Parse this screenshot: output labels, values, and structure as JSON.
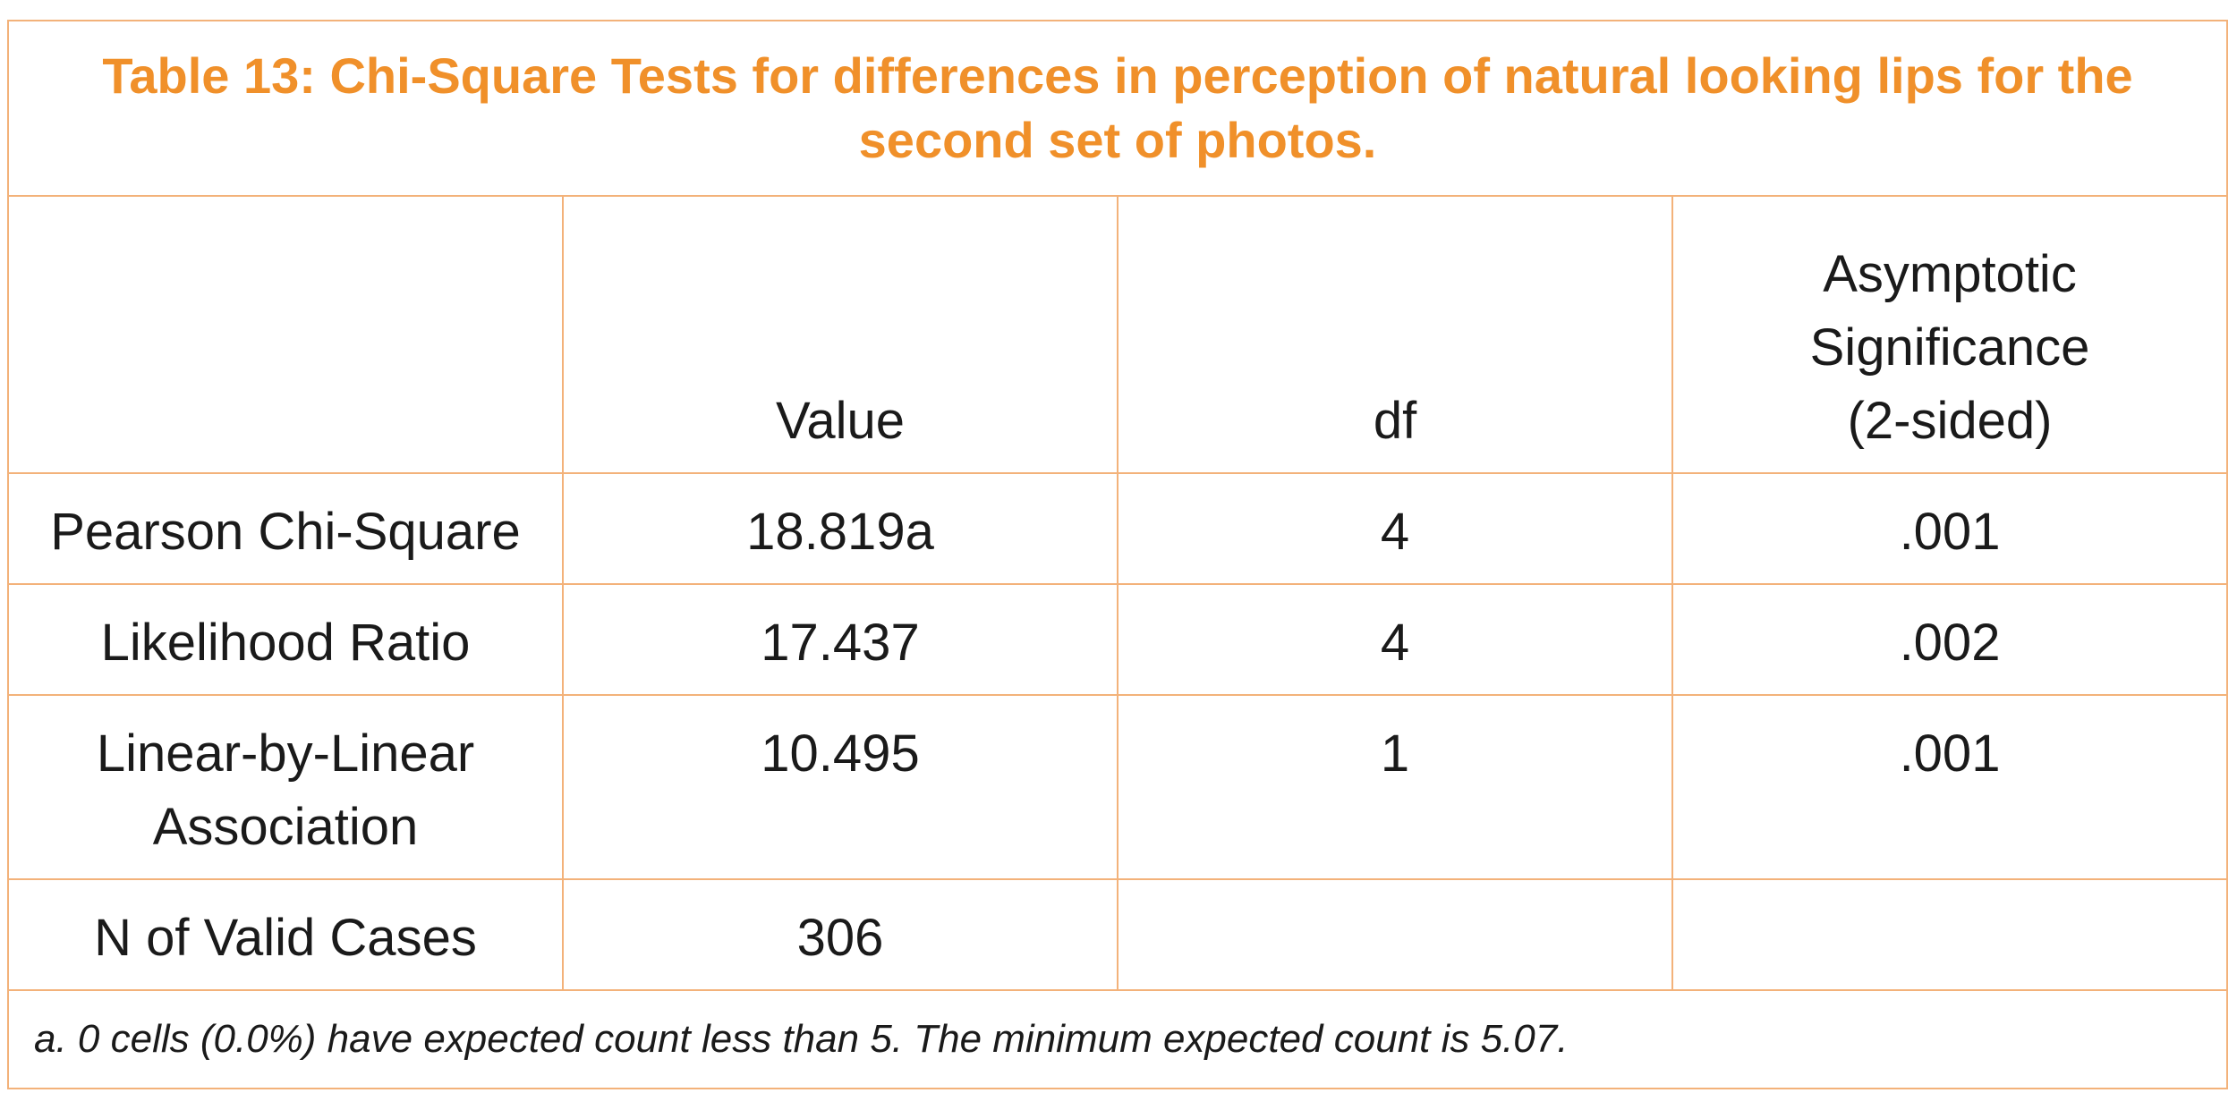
{
  "table": {
    "title": "Table 13: Chi-Square Tests for differences in perception of natural looking lips for the second set of photos.",
    "headers": [
      "",
      "Value",
      "df",
      "Asymptotic Significance (2-sided)"
    ],
    "rows": [
      {
        "label": "Pearson Chi-Square",
        "value": "18.819a",
        "df": "4",
        "sig": ".001"
      },
      {
        "label": "Likelihood Ratio",
        "value": "17.437",
        "df": "4",
        "sig": ".002"
      },
      {
        "label": "Linear-by-Linear Association",
        "value": "10.495",
        "df": "1",
        "sig": ".001"
      },
      {
        "label": "N of Valid Cases",
        "value": "306",
        "df": "",
        "sig": ""
      }
    ],
    "footnote": "a. 0 cells (0.0%) have expected count less than 5. The minimum expected count is 5.07."
  },
  "colors": {
    "accent": "#f0902a",
    "border": "#f3b27a",
    "text": "#1a1a1a"
  }
}
